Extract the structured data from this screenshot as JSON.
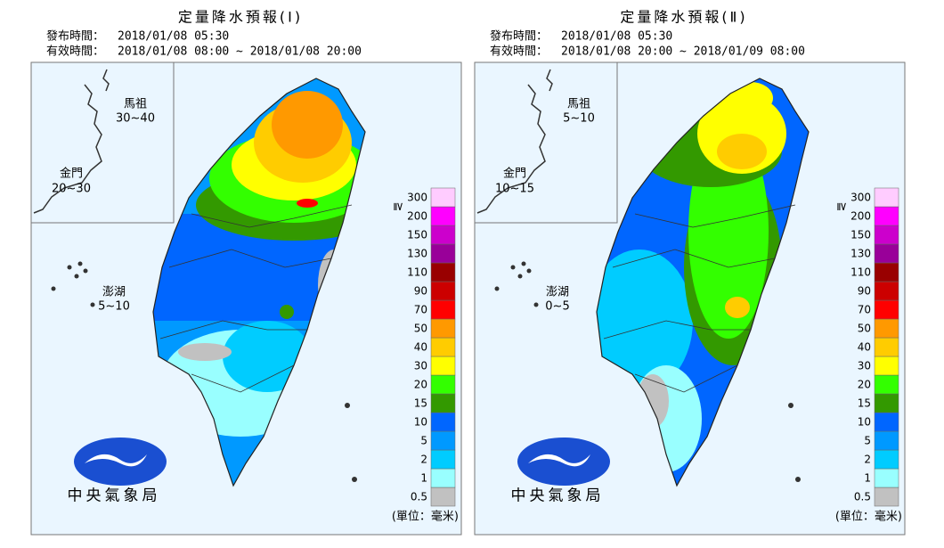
{
  "panels": [
    {
      "title": "定量降水預報(Ⅰ)",
      "issue_label": "發布時間：",
      "issue_time": "2018/01/08 05:30",
      "valid_label": "有效時間：",
      "valid_time": "2018/01/08 08:00 ~ 2018/01/08 20:00",
      "matsu": {
        "name": "馬祖",
        "range": "30~40"
      },
      "kinmen": {
        "name": "金門",
        "range": "20~30"
      },
      "penghu": {
        "name": "澎湖",
        "range": "5~10"
      }
    },
    {
      "title": "定量降水預報(Ⅱ)",
      "issue_label": "發布時間：",
      "issue_time": "2018/01/08 05:30",
      "valid_label": "有效時間：",
      "valid_time": "2018/01/08 20:00 ~ 2018/01/09 08:00",
      "matsu": {
        "name": "馬祖",
        "range": "5~10"
      },
      "kinmen": {
        "name": "金門",
        "range": "10~15"
      },
      "penghu": {
        "name": "澎湖",
        "range": "0~5"
      }
    }
  ],
  "legend": {
    "symbol": "≧",
    "items": [
      {
        "label": "0.5",
        "color": "#c1c1c1"
      },
      {
        "label": "1",
        "color": "#99ffff"
      },
      {
        "label": "2",
        "color": "#00ccff"
      },
      {
        "label": "5",
        "color": "#0099ff"
      },
      {
        "label": "10",
        "color": "#0066ff"
      },
      {
        "label": "15",
        "color": "#339900"
      },
      {
        "label": "20",
        "color": "#33ff00"
      },
      {
        "label": "30",
        "color": "#ffff00"
      },
      {
        "label": "40",
        "color": "#ffcc00"
      },
      {
        "label": "50",
        "color": "#ff9900"
      },
      {
        "label": "70",
        "color": "#ff0000"
      },
      {
        "label": "90",
        "color": "#cc0000"
      },
      {
        "label": "110",
        "color": "#990000"
      },
      {
        "label": "130",
        "color": "#990099"
      },
      {
        "label": "150",
        "color": "#cc00cc"
      },
      {
        "label": "200",
        "color": "#ff00ff"
      },
      {
        "label": "300",
        "color": "#ffccff"
      }
    ]
  },
  "unit": "(單位：毫米)",
  "agency": "中央氣象局"
}
